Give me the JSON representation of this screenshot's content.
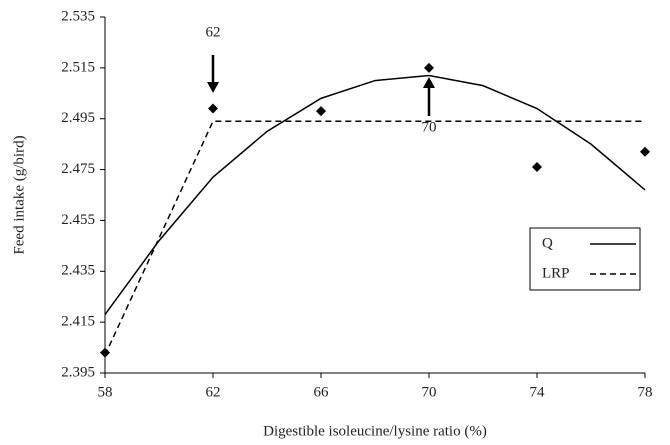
{
  "chart_data": {
    "type": "scatter",
    "xlabel": "Digestible isoleucine/lysine ratio (%)",
    "ylabel": "Feed intake (g/bird)",
    "xlim": [
      58,
      78
    ],
    "xticks": [
      58,
      62,
      66,
      70,
      74,
      78
    ],
    "ylim": [
      2.395,
      2.535
    ],
    "yticks": [
      2.395,
      2.415,
      2.435,
      2.455,
      2.475,
      2.495,
      2.515,
      2.535
    ],
    "grid": false,
    "legend": "lower right",
    "series": [
      {
        "type": "scatter",
        "color": "#000000",
        "x": [
          58,
          62,
          66,
          70,
          74,
          78
        ],
        "values": [
          2.403,
          2.499,
          2.498,
          2.515,
          2.476,
          2.482
        ]
      },
      {
        "name": "Q",
        "type": "line",
        "dash": false,
        "color": "#000000",
        "x": [
          58,
          60,
          62,
          64,
          66,
          68,
          70,
          72,
          74,
          76,
          78
        ],
        "values": [
          2.418,
          2.447,
          2.472,
          2.49,
          2.503,
          2.51,
          2.512,
          2.508,
          2.499,
          2.485,
          2.467
        ]
      },
      {
        "name": "LRP",
        "type": "line",
        "dash": true,
        "color": "#000000",
        "x": [
          58,
          62,
          78
        ],
        "values": [
          2.402,
          2.494,
          2.494
        ]
      }
    ],
    "annotations": [
      {
        "label": "62",
        "x": 62,
        "direction": "down"
      },
      {
        "label": "70",
        "x": 70,
        "direction": "up"
      }
    ]
  }
}
